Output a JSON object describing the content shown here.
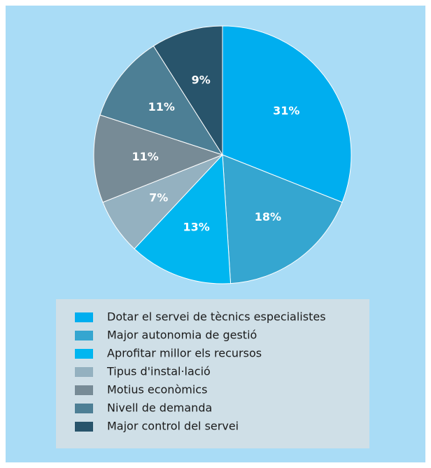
{
  "chart_data": {
    "type": "pie",
    "categories": [
      "Dotar el servei de tècnics especialistes",
      "Major autonomia de gestió",
      "Aprofitar millor els recursos",
      "Tipus d'instal·lació",
      "Motius econòmics",
      "Nivell de demanda",
      "Major control del servei"
    ],
    "values": [
      31,
      18,
      13,
      7,
      11,
      11,
      9
    ],
    "value_labels": [
      "31%",
      "18%",
      "13%",
      "7%",
      "11%",
      "11%",
      "9%"
    ],
    "colors": [
      "#00aeef",
      "#35a6d0",
      "#00b6f0",
      "#94b1c0",
      "#778b96",
      "#4d7f95",
      "#28546b"
    ]
  }
}
